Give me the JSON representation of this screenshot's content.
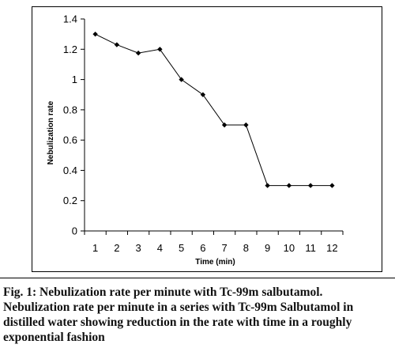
{
  "chart_data": {
    "type": "line",
    "x": [
      1,
      2,
      3,
      4,
      5,
      6,
      7,
      8,
      9,
      10,
      11,
      12
    ],
    "series": [
      {
        "values": [
          1.3,
          1.23,
          1.175,
          1.2,
          1.0,
          0.9,
          0.7,
          0.7,
          0.3,
          0.3,
          0.3,
          0.3
        ]
      }
    ],
    "xlabel": "Time (min)",
    "ylabel": "Nebulization rate",
    "xlim": [
      0.5,
      12.5
    ],
    "ylim": [
      0,
      1.4
    ],
    "yticks": [
      "0",
      "0.2",
      "0.4",
      "0.6",
      "0.8",
      "1",
      "1.2",
      "1.4"
    ],
    "xticks": [
      "1",
      "2",
      "3",
      "4",
      "5",
      "6",
      "7",
      "8",
      "9",
      "10",
      "11",
      "12"
    ],
    "grid": false,
    "line_color": "#000000"
  },
  "caption": {
    "line1": "Fig. 1: Nebulization rate per minute with Tc-99m salbutamol.",
    "line2": "Nebulization rate per minute in a series with Tc-99m Salbutamol in",
    "line3": "distilled water showing reduction in the rate with time in a roughly",
    "line4": "exponential fashion"
  }
}
